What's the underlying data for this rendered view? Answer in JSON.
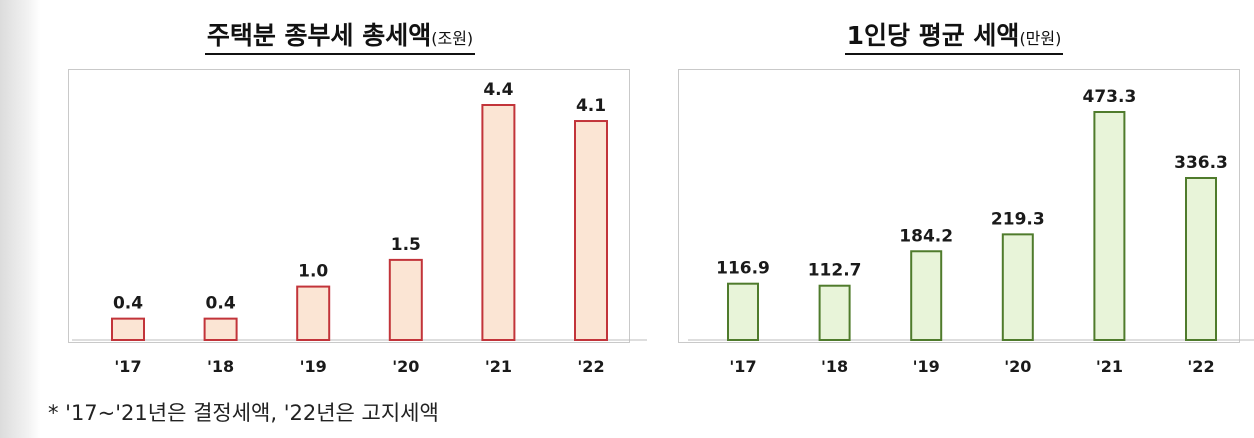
{
  "charts": [
    {
      "title": "주택분 종부세 총세액",
      "unit": "(조원)",
      "chart_data": {
        "type": "bar",
        "categories": [
          "'17",
          "'18",
          "'19",
          "'20",
          "'21",
          "'22"
        ],
        "values": [
          0.4,
          0.4,
          1.0,
          1.5,
          4.4,
          4.1
        ],
        "value_labels": [
          "0.4",
          "0.4",
          "1.0",
          "1.5",
          "4.4",
          "4.1"
        ],
        "ylim": [
          0,
          4.4
        ],
        "bar_fill": "#fbe5d4",
        "bar_stroke": "#c2343a"
      }
    },
    {
      "title": "1인당 평균 세액",
      "unit": "(만원)",
      "chart_data": {
        "type": "bar",
        "categories": [
          "'17",
          "'18",
          "'19",
          "'20",
          "'21",
          "'22"
        ],
        "values": [
          116.9,
          112.7,
          184.2,
          219.3,
          473.3,
          336.3
        ],
        "value_labels": [
          "116.9",
          "112.7",
          "184.2",
          "219.3",
          "473.3",
          "336.3"
        ],
        "ylim": [
          0,
          473.3
        ],
        "bar_fill": "#e8f4d9",
        "bar_stroke": "#4f7b2c"
      }
    }
  ],
  "footnote": "*  '17~'21년은  결정세액,  '22년은  고지세액"
}
